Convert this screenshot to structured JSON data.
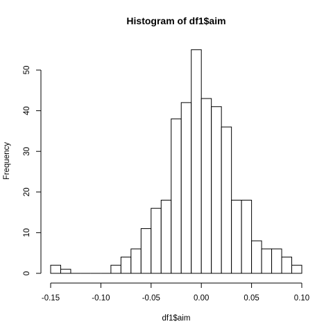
{
  "chart_data": {
    "type": "bar",
    "title": "Histogram of df1$aim",
    "xlabel": "df1$aim",
    "ylabel": "Frequency",
    "bin_width": 0.01,
    "bins": [
      {
        "x0": -0.15,
        "x1": -0.14,
        "count": 2
      },
      {
        "x0": -0.14,
        "x1": -0.13,
        "count": 1
      },
      {
        "x0": -0.13,
        "x1": -0.12,
        "count": 0
      },
      {
        "x0": -0.12,
        "x1": -0.11,
        "count": 0
      },
      {
        "x0": -0.11,
        "x1": -0.1,
        "count": 0
      },
      {
        "x0": -0.1,
        "x1": -0.09,
        "count": 0
      },
      {
        "x0": -0.09,
        "x1": -0.08,
        "count": 2
      },
      {
        "x0": -0.08,
        "x1": -0.07,
        "count": 4
      },
      {
        "x0": -0.07,
        "x1": -0.06,
        "count": 6
      },
      {
        "x0": -0.06,
        "x1": -0.05,
        "count": 11
      },
      {
        "x0": -0.05,
        "x1": -0.04,
        "count": 16
      },
      {
        "x0": -0.04,
        "x1": -0.03,
        "count": 18
      },
      {
        "x0": -0.03,
        "x1": -0.02,
        "count": 38
      },
      {
        "x0": -0.02,
        "x1": -0.01,
        "count": 42
      },
      {
        "x0": -0.01,
        "x1": 0.0,
        "count": 55
      },
      {
        "x0": 0.0,
        "x1": 0.01,
        "count": 43
      },
      {
        "x0": 0.01,
        "x1": 0.02,
        "count": 41
      },
      {
        "x0": 0.02,
        "x1": 0.03,
        "count": 36
      },
      {
        "x0": 0.03,
        "x1": 0.04,
        "count": 18
      },
      {
        "x0": 0.04,
        "x1": 0.05,
        "count": 18
      },
      {
        "x0": 0.05,
        "x1": 0.06,
        "count": 8
      },
      {
        "x0": 0.06,
        "x1": 0.07,
        "count": 6
      },
      {
        "x0": 0.07,
        "x1": 0.08,
        "count": 6
      },
      {
        "x0": 0.08,
        "x1": 0.09,
        "count": 4
      },
      {
        "x0": 0.09,
        "x1": 0.1,
        "count": 2
      }
    ],
    "x_ticks": [
      -0.15,
      -0.1,
      -0.05,
      0.0,
      0.05,
      0.1
    ],
    "x_tick_labels": [
      "-0.15",
      "-0.10",
      "-0.05",
      "0.00",
      "0.05",
      "0.10"
    ],
    "y_ticks": [
      0,
      10,
      20,
      30,
      40,
      50
    ],
    "y_tick_labels": [
      "0",
      "10",
      "20",
      "30",
      "40",
      "50"
    ],
    "xlim": [
      -0.15,
      0.1
    ],
    "ylim": [
      0,
      55
    ],
    "bar_fill": "#ffffff",
    "bar_stroke": "#000000",
    "grid": false
  }
}
